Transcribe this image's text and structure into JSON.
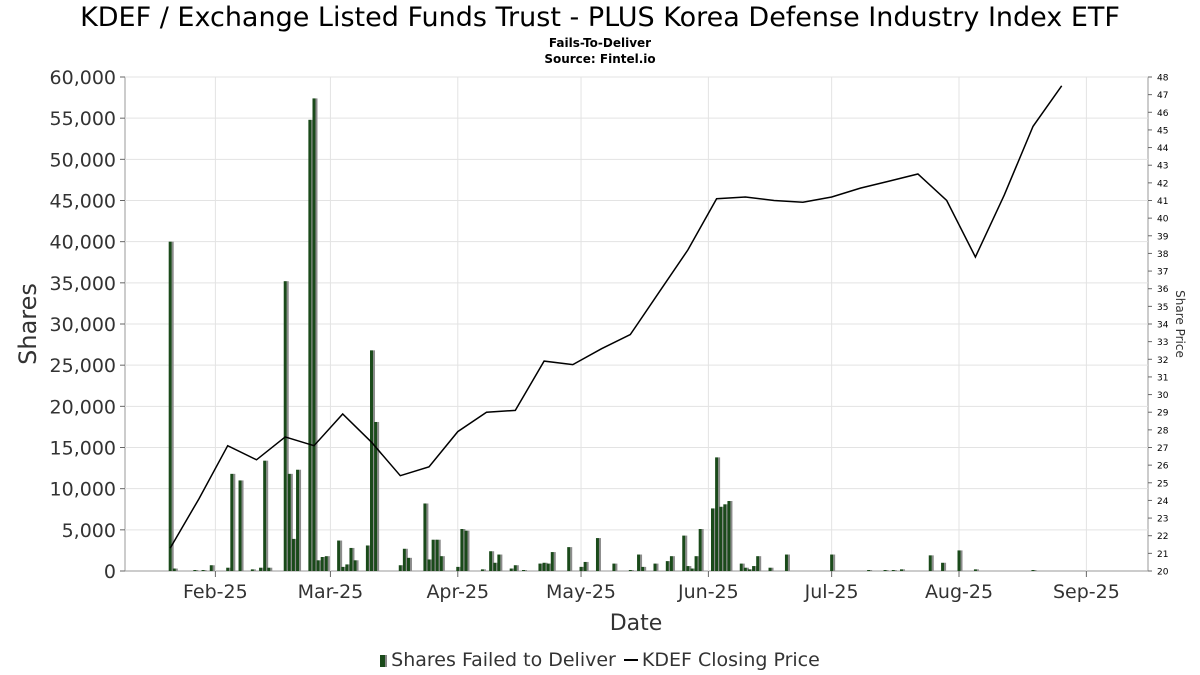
{
  "title": "KDEF / Exchange Listed Funds Trust - PLUS Korea Defense Industry Index ETF",
  "subtitle": "Fails-To-Deliver",
  "source": "Source: Fintel.io",
  "legend": {
    "bars": "Shares Failed to Deliver",
    "line": "KDEF Closing Price"
  },
  "colors": {
    "bar": "#1a4a1a",
    "bar_shadow": "#8c8c8c",
    "line": "#000000",
    "grid": "#e3e3e3"
  },
  "chart_data": {
    "type": "bar+line",
    "xlabel": "Date",
    "ylabel": "Shares",
    "y2label": "Share Price",
    "ylim": [
      0,
      60000
    ],
    "y2lim": [
      20,
      48
    ],
    "y_ticks": [
      0,
      5000,
      10000,
      15000,
      20000,
      25000,
      30000,
      35000,
      40000,
      45000,
      50000,
      55000,
      60000
    ],
    "y_tick_labels": [
      "0",
      "5,000",
      "10,000",
      "15,000",
      "20,000",
      "25,000",
      "30,000",
      "35,000",
      "40,000",
      "45,000",
      "50,000",
      "55,000",
      "60,000"
    ],
    "y2_ticks": [
      20,
      21,
      22,
      23,
      24,
      25,
      26,
      27,
      28,
      29,
      30,
      31,
      32,
      33,
      34,
      35,
      36,
      37,
      38,
      39,
      40,
      41,
      42,
      43,
      44,
      45,
      46,
      47,
      48
    ],
    "x_range": [
      "2025-01-10",
      "2025-09-16"
    ],
    "x_ticks": [
      {
        "date": "2025-02-01",
        "label": "Feb-25"
      },
      {
        "date": "2025-03-01",
        "label": "Mar-25"
      },
      {
        "date": "2025-04-01",
        "label": "Apr-25"
      },
      {
        "date": "2025-05-01",
        "label": "May-25"
      },
      {
        "date": "2025-06-01",
        "label": "Jun-25"
      },
      {
        "date": "2025-07-01",
        "label": "Jul-25"
      },
      {
        "date": "2025-08-01",
        "label": "Aug-25"
      },
      {
        "date": "2025-09-01",
        "label": "Sep-25"
      }
    ],
    "grid": true,
    "legend_position": "bottom",
    "series": [
      {
        "name": "Shares Failed to Deliver",
        "kind": "bar",
        "axis": "left",
        "points": [
          {
            "date": "2025-01-21",
            "value": 40000
          },
          {
            "date": "2025-01-22",
            "value": 300
          },
          {
            "date": "2025-01-27",
            "value": 100
          },
          {
            "date": "2025-01-29",
            "value": 100
          },
          {
            "date": "2025-01-31",
            "value": 700
          },
          {
            "date": "2025-02-04",
            "value": 400
          },
          {
            "date": "2025-02-05",
            "value": 11800
          },
          {
            "date": "2025-02-07",
            "value": 11000
          },
          {
            "date": "2025-02-10",
            "value": 200
          },
          {
            "date": "2025-02-12",
            "value": 400
          },
          {
            "date": "2025-02-13",
            "value": 13400
          },
          {
            "date": "2025-02-14",
            "value": 400
          },
          {
            "date": "2025-02-18",
            "value": 35200
          },
          {
            "date": "2025-02-19",
            "value": 11800
          },
          {
            "date": "2025-02-20",
            "value": 3900
          },
          {
            "date": "2025-02-21",
            "value": 12300
          },
          {
            "date": "2025-02-24",
            "value": 54800
          },
          {
            "date": "2025-02-25",
            "value": 57400
          },
          {
            "date": "2025-02-26",
            "value": 1300
          },
          {
            "date": "2025-02-27",
            "value": 1700
          },
          {
            "date": "2025-02-28",
            "value": 1800
          },
          {
            "date": "2025-03-03",
            "value": 3700
          },
          {
            "date": "2025-03-04",
            "value": 500
          },
          {
            "date": "2025-03-05",
            "value": 800
          },
          {
            "date": "2025-03-06",
            "value": 2800
          },
          {
            "date": "2025-03-07",
            "value": 1300
          },
          {
            "date": "2025-03-10",
            "value": 3100
          },
          {
            "date": "2025-03-11",
            "value": 26800
          },
          {
            "date": "2025-03-12",
            "value": 18100
          },
          {
            "date": "2025-03-18",
            "value": 700
          },
          {
            "date": "2025-03-19",
            "value": 2700
          },
          {
            "date": "2025-03-20",
            "value": 1600
          },
          {
            "date": "2025-03-24",
            "value": 8200
          },
          {
            "date": "2025-03-25",
            "value": 1400
          },
          {
            "date": "2025-03-26",
            "value": 3800
          },
          {
            "date": "2025-03-27",
            "value": 3800
          },
          {
            "date": "2025-03-28",
            "value": 1800
          },
          {
            "date": "2025-04-01",
            "value": 500
          },
          {
            "date": "2025-04-02",
            "value": 5100
          },
          {
            "date": "2025-04-03",
            "value": 4900
          },
          {
            "date": "2025-04-07",
            "value": 200
          },
          {
            "date": "2025-04-09",
            "value": 2400
          },
          {
            "date": "2025-04-10",
            "value": 1000
          },
          {
            "date": "2025-04-11",
            "value": 2000
          },
          {
            "date": "2025-04-14",
            "value": 300
          },
          {
            "date": "2025-04-15",
            "value": 700
          },
          {
            "date": "2025-04-17",
            "value": 100
          },
          {
            "date": "2025-04-21",
            "value": 900
          },
          {
            "date": "2025-04-22",
            "value": 1000
          },
          {
            "date": "2025-04-23",
            "value": 900
          },
          {
            "date": "2025-04-24",
            "value": 2300
          },
          {
            "date": "2025-04-28",
            "value": 2900
          },
          {
            "date": "2025-05-01",
            "value": 500
          },
          {
            "date": "2025-05-02",
            "value": 1100
          },
          {
            "date": "2025-05-05",
            "value": 4000
          },
          {
            "date": "2025-05-09",
            "value": 900
          },
          {
            "date": "2025-05-13",
            "value": 100
          },
          {
            "date": "2025-05-15",
            "value": 2000
          },
          {
            "date": "2025-05-16",
            "value": 500
          },
          {
            "date": "2025-05-19",
            "value": 900
          },
          {
            "date": "2025-05-22",
            "value": 1200
          },
          {
            "date": "2025-05-23",
            "value": 1800
          },
          {
            "date": "2025-05-26",
            "value": 4300
          },
          {
            "date": "2025-05-27",
            "value": 600
          },
          {
            "date": "2025-05-28",
            "value": 300
          },
          {
            "date": "2025-05-29",
            "value": 1800
          },
          {
            "date": "2025-05-30",
            "value": 5100
          },
          {
            "date": "2025-06-02",
            "value": 7600
          },
          {
            "date": "2025-06-03",
            "value": 13800
          },
          {
            "date": "2025-06-04",
            "value": 7800
          },
          {
            "date": "2025-06-05",
            "value": 8100
          },
          {
            "date": "2025-06-06",
            "value": 8500
          },
          {
            "date": "2025-06-09",
            "value": 900
          },
          {
            "date": "2025-06-10",
            "value": 400
          },
          {
            "date": "2025-06-11",
            "value": 200
          },
          {
            "date": "2025-06-12",
            "value": 600
          },
          {
            "date": "2025-06-13",
            "value": 1800
          },
          {
            "date": "2025-06-16",
            "value": 400
          },
          {
            "date": "2025-06-20",
            "value": 2000
          },
          {
            "date": "2025-07-01",
            "value": 2000
          },
          {
            "date": "2025-07-10",
            "value": 100
          },
          {
            "date": "2025-07-14",
            "value": 100
          },
          {
            "date": "2025-07-16",
            "value": 100
          },
          {
            "date": "2025-07-18",
            "value": 200
          },
          {
            "date": "2025-07-25",
            "value": 1900
          },
          {
            "date": "2025-07-28",
            "value": 1000
          },
          {
            "date": "2025-08-01",
            "value": 2500
          },
          {
            "date": "2025-08-05",
            "value": 200
          },
          {
            "date": "2025-08-19",
            "value": 100
          }
        ]
      },
      {
        "name": "KDEF Closing Price",
        "kind": "line",
        "axis": "right",
        "points": [
          {
            "date": "2025-01-21",
            "value": 21.3
          },
          {
            "date": "2025-01-28",
            "value": 24.1
          },
          {
            "date": "2025-02-04",
            "value": 27.1
          },
          {
            "date": "2025-02-11",
            "value": 26.3
          },
          {
            "date": "2025-02-18",
            "value": 27.6
          },
          {
            "date": "2025-02-25",
            "value": 27.1
          },
          {
            "date": "2025-03-04",
            "value": 28.9
          },
          {
            "date": "2025-03-11",
            "value": 27.3
          },
          {
            "date": "2025-03-18",
            "value": 25.4
          },
          {
            "date": "2025-03-25",
            "value": 25.9
          },
          {
            "date": "2025-04-01",
            "value": 27.9
          },
          {
            "date": "2025-04-08",
            "value": 29.0
          },
          {
            "date": "2025-04-15",
            "value": 29.1
          },
          {
            "date": "2025-04-22",
            "value": 31.9
          },
          {
            "date": "2025-04-29",
            "value": 31.7
          },
          {
            "date": "2025-05-06",
            "value": 32.6
          },
          {
            "date": "2025-05-13",
            "value": 33.4
          },
          {
            "date": "2025-05-20",
            "value": 35.8
          },
          {
            "date": "2025-05-27",
            "value": 38.2
          },
          {
            "date": "2025-06-03",
            "value": 41.1
          },
          {
            "date": "2025-06-10",
            "value": 41.2
          },
          {
            "date": "2025-06-17",
            "value": 41.0
          },
          {
            "date": "2025-06-24",
            "value": 40.9
          },
          {
            "date": "2025-07-01",
            "value": 41.2
          },
          {
            "date": "2025-07-08",
            "value": 41.7
          },
          {
            "date": "2025-07-15",
            "value": 42.1
          },
          {
            "date": "2025-07-22",
            "value": 42.5
          },
          {
            "date": "2025-07-29",
            "value": 41.0
          },
          {
            "date": "2025-08-05",
            "value": 37.8
          },
          {
            "date": "2025-08-12",
            "value": 41.3
          },
          {
            "date": "2025-08-19",
            "value": 45.2
          },
          {
            "date": "2025-08-26",
            "value": 47.5
          }
        ]
      }
    ]
  }
}
